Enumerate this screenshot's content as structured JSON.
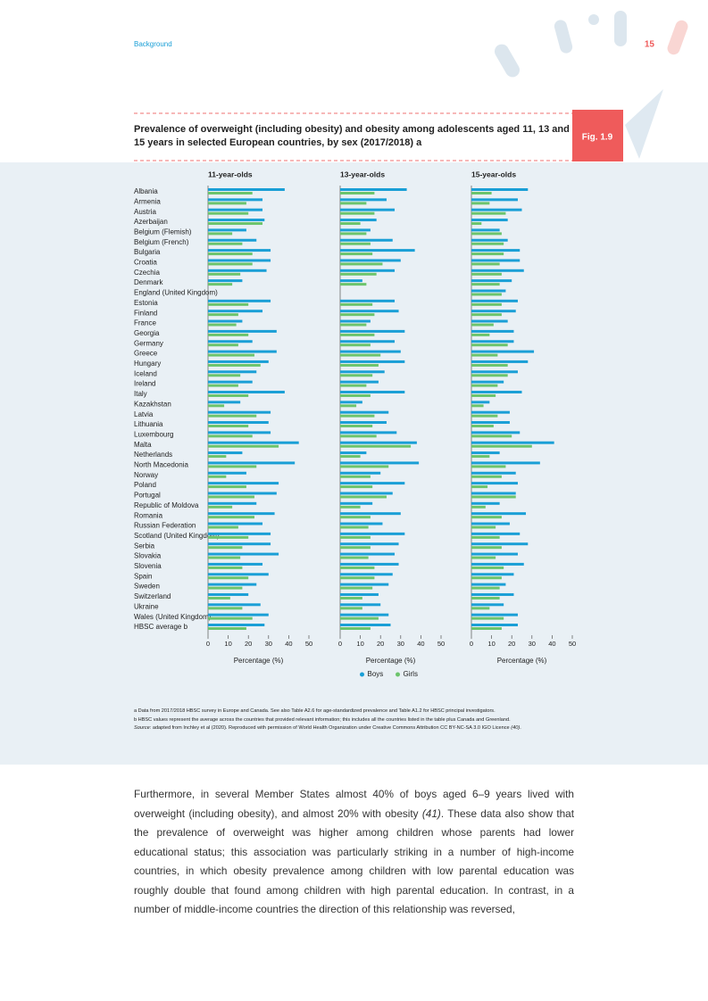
{
  "header": {
    "section": "Background",
    "page": 15
  },
  "figure": {
    "title": "Prevalence of overweight (including obesity) and obesity among adolescents aged 11, 13 and 15 years in selected European countries, by sex (2017/2018) a",
    "label": "Fig. 1.9"
  },
  "chart_data": [
    {
      "type": "bar",
      "orientation": "horizontal",
      "title": "11-year-olds",
      "xlabel": "Percentage (%)",
      "categories": [
        "Albania",
        "Armenia",
        "Austria",
        "Azerbaijan",
        "Belgium (Flemish)",
        "Belgium (French)",
        "Bulgaria",
        "Croatia",
        "Czechia",
        "Denmark",
        "England (United Kingdom)",
        "Estonia",
        "Finland",
        "France",
        "Georgia",
        "Germany",
        "Greece",
        "Hungary",
        "Iceland",
        "Ireland",
        "Italy",
        "Kazakhstan",
        "Latvia",
        "Lithuania",
        "Luxembourg",
        "Malta",
        "Netherlands",
        "North Macedonia",
        "Norway",
        "Poland",
        "Portugal",
        "Republic of Moldova",
        "Romania",
        "Russian Federation",
        "Scotland (United Kingdom)",
        "Serbia",
        "Slovakia",
        "Slovenia",
        "Spain",
        "Sweden",
        "Switzerland",
        "Ukraine",
        "Wales (United Kingdom)",
        "HBSC average b"
      ],
      "series": [
        {
          "color": "#1a9fd6",
          "values": [
            38,
            27,
            27,
            28,
            19,
            24,
            31,
            31,
            29,
            17,
            null,
            31,
            27,
            17,
            34,
            22,
            34,
            30,
            24,
            22,
            38,
            16,
            31,
            30,
            31,
            45,
            17,
            43,
            19,
            35,
            34,
            24,
            33,
            27,
            31,
            31,
            35,
            27,
            30,
            24,
            20,
            26,
            30,
            28
          ]
        },
        {
          "color": "#6cc46c",
          "values": [
            22,
            19,
            20,
            27,
            12,
            17,
            22,
            22,
            16,
            12,
            null,
            20,
            15,
            14,
            20,
            15,
            23,
            26,
            16,
            15,
            20,
            8,
            24,
            20,
            22,
            35,
            9,
            24,
            9,
            19,
            23,
            12,
            23,
            15,
            20,
            17,
            16,
            17,
            20,
            17,
            11,
            17,
            22,
            19
          ]
        }
      ],
      "xlim": [
        0,
        50
      ],
      "xticks": [
        0,
        10,
        20,
        30,
        40,
        50
      ]
    },
    {
      "type": "bar",
      "orientation": "horizontal",
      "title": "13-year-olds",
      "xlabel": "Percentage (%)",
      "series": [
        {
          "name": "Boys",
          "color": "#1a9fd6",
          "values": [
            33,
            23,
            27,
            18,
            15,
            26,
            37,
            30,
            27,
            11,
            null,
            27,
            29,
            15,
            32,
            27,
            30,
            32,
            22,
            19,
            32,
            11,
            24,
            23,
            28,
            38,
            13,
            39,
            20,
            32,
            26,
            16,
            30,
            21,
            32,
            29,
            27,
            29,
            26,
            24,
            19,
            20,
            24,
            25
          ]
        },
        {
          "name": "Girls",
          "color": "#6cc46c",
          "values": [
            17,
            13,
            17,
            10,
            13,
            15,
            16,
            21,
            18,
            13,
            null,
            16,
            17,
            13,
            17,
            15,
            20,
            19,
            16,
            13,
            15,
            8,
            17,
            16,
            18,
            35,
            10,
            24,
            15,
            16,
            23,
            10,
            15,
            14,
            15,
            15,
            14,
            17,
            17,
            16,
            11,
            11,
            19,
            15
          ]
        }
      ],
      "xlim": [
        0,
        50
      ],
      "xticks": [
        0,
        10,
        20,
        30,
        40,
        50
      ]
    },
    {
      "type": "bar",
      "orientation": "horizontal",
      "title": "15-year-olds",
      "xlabel": "Percentage (%)",
      "series": [
        {
          "color": "#1a9fd6",
          "values": [
            28,
            23,
            25,
            18,
            14,
            18,
            24,
            24,
            26,
            20,
            17,
            23,
            22,
            18,
            21,
            21,
            31,
            28,
            23,
            16,
            25,
            9,
            19,
            19,
            24,
            41,
            14,
            34,
            22,
            23,
            22,
            14,
            27,
            19,
            24,
            28,
            23,
            26,
            21,
            17,
            21,
            16,
            23,
            23
          ]
        },
        {
          "color": "#6cc46c",
          "values": [
            10,
            9,
            17,
            5,
            15,
            16,
            16,
            14,
            15,
            14,
            15,
            15,
            15,
            11,
            9,
            18,
            13,
            18,
            18,
            13,
            12,
            6,
            13,
            11,
            20,
            30,
            9,
            17,
            15,
            8,
            22,
            7,
            15,
            12,
            14,
            15,
            12,
            16,
            15,
            14,
            14,
            9,
            16,
            15
          ]
        }
      ],
      "xlim": [
        0,
        50
      ],
      "xticks": [
        0,
        10,
        20,
        30,
        40,
        50
      ]
    }
  ],
  "notes": [
    "a Data from 2017/2018 HBSC survey in Europe and Canada. See also Table A2.6 for age-standardized prevalence and Table A1.2 for HBSC principal investigators.",
    "b HBSC values represent the average across the countries that provided relevant information; this includes all the countries listed in the table plus Canada and Greenland."
  ],
  "source": {
    "label": "Source:",
    "text": " adapted from Inchley et al (2020). Reproduced with permission of World Health Organization under Creative Commons Attribution CC BY-NC-SA 3.0 IGO Licence ",
    "ref": "(40)",
    "end": "."
  },
  "body": [
    "Furthermore, in several Member States almost 40% of boys aged 6–9 years lived with overweight (including obesity), and almost 20% with obesity ",
    "(41)",
    ". These data also show that the prevalence of overweight was higher among children whose parents had lower educational status; this association was particularly striking in a number of high-income countries, in which obesity prevalence among children with low parental education was roughly double that found among children with high parental education. In contrast, in a number of middle-income countries the direction of this relationship was reversed,"
  ]
}
